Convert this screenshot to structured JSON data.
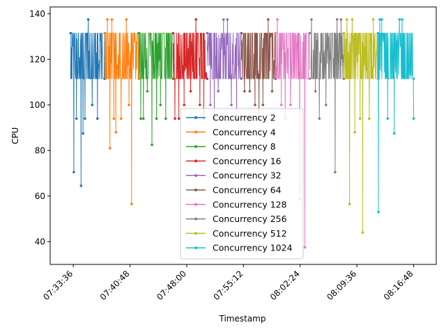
{
  "chart_data": {
    "type": "line",
    "title": "",
    "xlabel": "Timestamp",
    "ylabel": "CPU",
    "xlim": [
      "07:30:40",
      "08:19:40"
    ],
    "ylim": [
      30,
      143
    ],
    "xticks": [
      "07:33:36",
      "07:40:48",
      "07:48:00",
      "07:55:12",
      "08:02:24",
      "08:09:36",
      "08:16:48"
    ],
    "yticks": [
      40,
      60,
      80,
      100,
      120,
      140
    ],
    "legend_position": "lower-center",
    "grid": false,
    "band": {
      "low": 111.5,
      "high": 131.5
    },
    "series": [
      {
        "name": "Concurrency 2",
        "color": "#1f77b4",
        "start": "07:33:16",
        "end": "07:37:36",
        "spikes": [
          [
            70.5,
            "07:33:40"
          ],
          [
            94,
            "07:34:00"
          ],
          [
            64.5,
            "07:34:35"
          ],
          [
            87.5,
            "07:34:50"
          ],
          [
            94,
            "07:35:05"
          ],
          [
            137.5,
            "07:35:30"
          ],
          [
            100,
            "07:36:00"
          ],
          [
            94,
            "07:36:40"
          ]
        ]
      },
      {
        "name": "Concurrency 4",
        "color": "#ff7f0e",
        "start": "07:37:36",
        "end": "07:41:56",
        "spikes": [
          [
            137.5,
            "07:37:55"
          ],
          [
            81,
            "07:38:15"
          ],
          [
            137.5,
            "07:38:30"
          ],
          [
            94,
            "07:38:45"
          ],
          [
            88,
            "07:39:00"
          ],
          [
            94,
            "07:39:40"
          ],
          [
            137.5,
            "07:40:20"
          ],
          [
            100,
            "07:40:40"
          ],
          [
            56.5,
            "07:41:00"
          ]
        ]
      },
      {
        "name": "Concurrency 8",
        "color": "#2ca02c",
        "start": "07:41:56",
        "end": "07:46:16",
        "spikes": [
          [
            94,
            "07:42:10"
          ],
          [
            94,
            "07:42:30"
          ],
          [
            106,
            "07:43:00"
          ],
          [
            82.5,
            "07:43:35"
          ],
          [
            94,
            "07:44:10"
          ],
          [
            100,
            "07:44:40"
          ],
          [
            94,
            "07:45:20"
          ]
        ]
      },
      {
        "name": "Concurrency 16",
        "color": "#d62728",
        "start": "07:46:16",
        "end": "07:50:36",
        "spikes": [
          [
            94,
            "07:46:30"
          ],
          [
            94,
            "07:47:00"
          ],
          [
            100,
            "07:47:40"
          ],
          [
            106,
            "07:48:30"
          ],
          [
            137.5,
            "07:49:10"
          ],
          [
            100,
            "07:49:40"
          ],
          [
            94,
            "07:50:10"
          ]
        ]
      },
      {
        "name": "Concurrency 32",
        "color": "#9467bd",
        "start": "07:50:36",
        "end": "07:54:56",
        "spikes": [
          [
            100,
            "07:51:00"
          ],
          [
            94,
            "07:51:30"
          ],
          [
            106,
            "07:52:00"
          ],
          [
            137.5,
            "07:52:40"
          ],
          [
            137.5,
            "07:53:10"
          ],
          [
            100,
            "07:53:40"
          ],
          [
            94,
            "07:54:20"
          ]
        ]
      },
      {
        "name": "Concurrency 64",
        "color": "#8c564b",
        "start": "07:54:56",
        "end": "07:59:16",
        "spikes": [
          [
            106,
            "07:55:20"
          ],
          [
            106,
            "07:56:00"
          ],
          [
            100,
            "07:56:40"
          ],
          [
            94,
            "07:57:10"
          ],
          [
            100,
            "07:57:40"
          ],
          [
            137.5,
            "07:58:20"
          ],
          [
            106,
            "07:58:50"
          ]
        ]
      },
      {
        "name": "Concurrency 128",
        "color": "#e377c2",
        "start": "07:59:16",
        "end": "08:03:36",
        "spikes": [
          [
            137.5,
            "07:59:30"
          ],
          [
            100,
            "08:00:00"
          ],
          [
            94,
            "08:00:30"
          ],
          [
            100,
            "08:01:10"
          ],
          [
            58.5,
            "08:02:20"
          ],
          [
            37.5,
            "08:03:00"
          ]
        ]
      },
      {
        "name": "Concurrency 256",
        "color": "#7f7f7f",
        "start": "08:03:36",
        "end": "08:07:56",
        "spikes": [
          [
            137.5,
            "08:03:50"
          ],
          [
            106,
            "08:04:20"
          ],
          [
            94,
            "08:04:50"
          ],
          [
            100,
            "08:05:40"
          ],
          [
            70.5,
            "08:06:50"
          ],
          [
            137.5,
            "08:07:05"
          ],
          [
            137.5,
            "08:07:35"
          ]
        ]
      },
      {
        "name": "Concurrency 512",
        "color": "#bcbd22",
        "start": "08:07:56",
        "end": "08:12:16",
        "spikes": [
          [
            137.5,
            "08:08:20"
          ],
          [
            56.5,
            "08:08:40"
          ],
          [
            137.5,
            "08:09:00"
          ],
          [
            88,
            "08:09:20"
          ],
          [
            94,
            "08:10:00"
          ],
          [
            44,
            "08:10:20"
          ],
          [
            94,
            "08:11:10"
          ],
          [
            137.5,
            "08:11:40"
          ]
        ]
      },
      {
        "name": "Concurrency 1024",
        "color": "#17becf",
        "start": "08:12:16",
        "end": "08:16:48",
        "spikes": [
          [
            53,
            "08:12:20"
          ],
          [
            137.5,
            "08:12:30"
          ],
          [
            137.5,
            "08:12:45"
          ],
          [
            94,
            "08:13:30"
          ],
          [
            87.5,
            "08:14:20"
          ],
          [
            137.5,
            "08:15:00"
          ],
          [
            137.5,
            "08:15:20"
          ],
          [
            94,
            "08:16:48"
          ]
        ]
      }
    ]
  }
}
